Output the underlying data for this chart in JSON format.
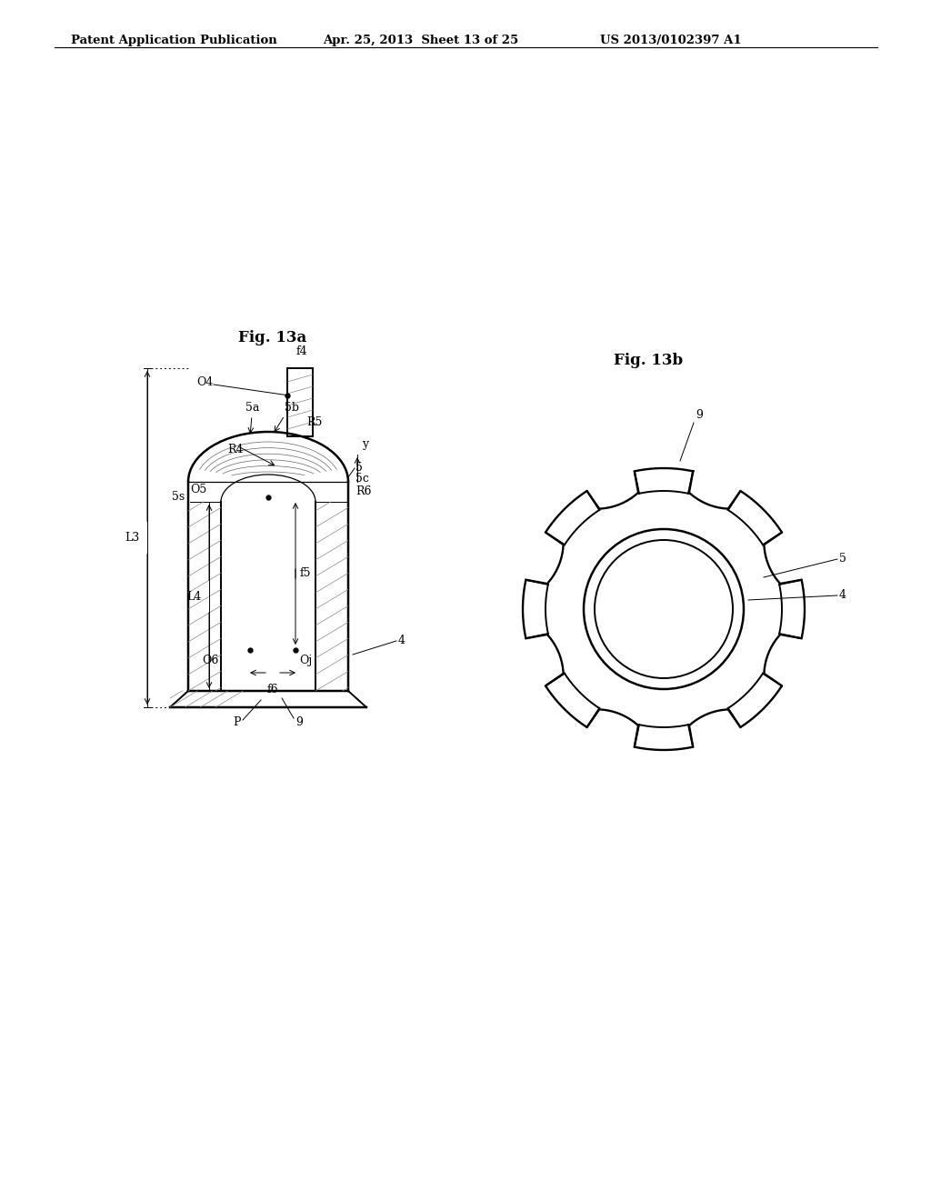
{
  "bg_color": "#ffffff",
  "header_text": "Patent Application Publication",
  "header_date": "Apr. 25, 2013  Sheet 13 of 25",
  "header_patent": "US 2013/0102397 A1",
  "fig13a_label": "Fig. 13a",
  "fig13b_label": "Fig. 13b",
  "line_color": "#000000",
  "line_width": 1.4,
  "thin_line": 0.7
}
